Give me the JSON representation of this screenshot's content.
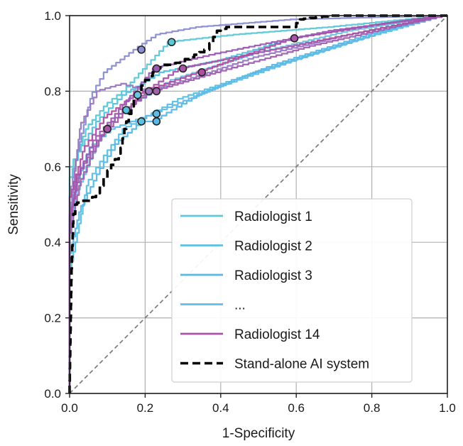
{
  "chart_data": {
    "type": "line",
    "xlabel": "1-Specificity",
    "ylabel": "Sensitivity",
    "xlim": [
      0,
      1
    ],
    "ylim": [
      0,
      1
    ],
    "xticks": [
      "0.0",
      "0.2",
      "0.4",
      "0.6",
      "0.8",
      "1.0"
    ],
    "yticks": [
      "0.0",
      "0.2",
      "0.4",
      "0.6",
      "0.8",
      "1.0"
    ],
    "grid": true,
    "legend_position": "lower-right",
    "legend": [
      {
        "label": "Radiologist 1",
        "color": "#5bc8d6",
        "style": "solid"
      },
      {
        "label": "Radiologist 2",
        "color": "#5cc0e0",
        "style": "solid"
      },
      {
        "label": "Radiologist 3",
        "color": "#58b8e6",
        "style": "solid"
      },
      {
        "label": "...",
        "color": "#62bce8",
        "style": "solid"
      },
      {
        "label": "Radiologist 14",
        "color": "#a855a8",
        "style": "solid"
      },
      {
        "label": "Stand-alone AI system",
        "color": "#000000",
        "style": "dashed"
      }
    ],
    "chance_line": {
      "x": [
        0,
        1
      ],
      "y": [
        0,
        1
      ],
      "color": "#808080",
      "style": "dashed"
    },
    "series": [
      {
        "color": "#5bc8d6",
        "points": [
          [
            0,
            0
          ],
          [
            0,
            0.58
          ],
          [
            0.02,
            0.62
          ],
          [
            0.05,
            0.7
          ],
          [
            0.1,
            0.76
          ],
          [
            0.15,
            0.8
          ],
          [
            0.27,
            0.93
          ],
          [
            0.45,
            0.95
          ],
          [
            0.7,
            0.97
          ],
          [
            1,
            1
          ]
        ]
      },
      {
        "color": "#5cc0e0",
        "points": [
          [
            0,
            0
          ],
          [
            0,
            0.3
          ],
          [
            0.02,
            0.4
          ],
          [
            0.05,
            0.55
          ],
          [
            0.1,
            0.63
          ],
          [
            0.15,
            0.7
          ],
          [
            0.19,
            0.72
          ],
          [
            0.3,
            0.78
          ],
          [
            0.5,
            0.85
          ],
          [
            0.75,
            0.93
          ],
          [
            1,
            1
          ]
        ]
      },
      {
        "color": "#58b8e6",
        "points": [
          [
            0,
            0
          ],
          [
            0,
            0.35
          ],
          [
            0.03,
            0.48
          ],
          [
            0.08,
            0.58
          ],
          [
            0.13,
            0.66
          ],
          [
            0.2,
            0.72
          ],
          [
            0.23,
            0.72
          ],
          [
            0.35,
            0.79
          ],
          [
            0.55,
            0.87
          ],
          [
            0.8,
            0.95
          ],
          [
            1,
            1
          ]
        ]
      },
      {
        "color": "#62bce8",
        "points": [
          [
            0,
            0
          ],
          [
            0,
            0.45
          ],
          [
            0.02,
            0.55
          ],
          [
            0.06,
            0.65
          ],
          [
            0.12,
            0.7
          ],
          [
            0.23,
            0.74
          ],
          [
            0.4,
            0.81
          ],
          [
            0.6,
            0.88
          ],
          [
            0.85,
            0.96
          ],
          [
            1,
            1
          ]
        ]
      },
      {
        "color": "#6cc4e2",
        "points": [
          [
            0,
            0
          ],
          [
            0,
            0.4
          ],
          [
            0.02,
            0.52
          ],
          [
            0.06,
            0.62
          ],
          [
            0.1,
            0.7
          ],
          [
            0.15,
            0.75
          ],
          [
            0.28,
            0.83
          ],
          [
            0.5,
            0.9
          ],
          [
            0.75,
            0.96
          ],
          [
            1,
            1
          ]
        ]
      },
      {
        "color": "#56c2dc",
        "points": [
          [
            0,
            0
          ],
          [
            0,
            0.55
          ],
          [
            0.03,
            0.64
          ],
          [
            0.08,
            0.72
          ],
          [
            0.15,
            0.79
          ],
          [
            0.25,
            0.85
          ],
          [
            0.4,
            0.88
          ],
          [
            0.6,
            0.94
          ],
          [
            0.85,
            0.98
          ],
          [
            1,
            1
          ]
        ]
      },
      {
        "color": "#8a8fd0",
        "points": [
          [
            0,
            0
          ],
          [
            0,
            0.5
          ],
          [
            0.02,
            0.62
          ],
          [
            0.06,
            0.78
          ],
          [
            0.1,
            0.85
          ],
          [
            0.18,
            0.91
          ],
          [
            0.24,
            0.95
          ],
          [
            0.35,
            0.97
          ],
          [
            0.6,
            0.99
          ],
          [
            1,
            1
          ]
        ]
      },
      {
        "color": "#9a78c2",
        "points": [
          [
            0,
            0
          ],
          [
            0,
            0.45
          ],
          [
            0.03,
            0.7
          ],
          [
            0.08,
            0.8
          ],
          [
            0.15,
            0.82
          ],
          [
            0.22,
            0.8
          ],
          [
            0.35,
            0.84
          ],
          [
            0.5,
            0.89
          ],
          [
            0.75,
            0.95
          ],
          [
            1,
            1
          ]
        ]
      },
      {
        "color": "#a060b0",
        "points": [
          [
            0,
            0
          ],
          [
            0,
            0.4
          ],
          [
            0.03,
            0.55
          ],
          [
            0.07,
            0.64
          ],
          [
            0.1,
            0.7
          ],
          [
            0.15,
            0.75
          ],
          [
            0.23,
            0.8
          ],
          [
            0.4,
            0.85
          ],
          [
            0.65,
            0.92
          ],
          [
            1,
            1
          ]
        ]
      },
      {
        "color": "#a855a8",
        "points": [
          [
            0,
            0
          ],
          [
            0,
            0.45
          ],
          [
            0.03,
            0.58
          ],
          [
            0.08,
            0.67
          ],
          [
            0.14,
            0.73
          ],
          [
            0.21,
            0.8
          ],
          [
            0.3,
            0.86
          ],
          [
            0.5,
            0.9
          ],
          [
            0.75,
            0.95
          ],
          [
            1,
            1
          ]
        ]
      },
      {
        "color": "#b04ea2",
        "points": [
          [
            0,
            0
          ],
          [
            0,
            0.5
          ],
          [
            0.04,
            0.64
          ],
          [
            0.1,
            0.73
          ],
          [
            0.18,
            0.79
          ],
          [
            0.35,
            0.85
          ],
          [
            0.6,
            0.94
          ],
          [
            0.85,
            0.98
          ],
          [
            1,
            1
          ]
        ]
      },
      {
        "color": "#9c5ab4",
        "points": [
          [
            0,
            0
          ],
          [
            0,
            0.42
          ],
          [
            0.02,
            0.56
          ],
          [
            0.07,
            0.67
          ],
          [
            0.13,
            0.74
          ],
          [
            0.23,
            0.86
          ],
          [
            0.4,
            0.9
          ],
          [
            0.7,
            0.96
          ],
          [
            1,
            1
          ]
        ]
      }
    ],
    "ai_system": {
      "color": "#000000",
      "points": [
        [
          0,
          0
        ],
        [
          0.005,
          0.3
        ],
        [
          0.01,
          0.45
        ],
        [
          0.02,
          0.5
        ],
        [
          0.04,
          0.51
        ],
        [
          0.06,
          0.51
        ],
        [
          0.08,
          0.53
        ],
        [
          0.09,
          0.55
        ],
        [
          0.11,
          0.59
        ],
        [
          0.13,
          0.62
        ],
        [
          0.14,
          0.65
        ],
        [
          0.15,
          0.7
        ],
        [
          0.17,
          0.76
        ],
        [
          0.19,
          0.8
        ],
        [
          0.21,
          0.83
        ],
        [
          0.23,
          0.85
        ],
        [
          0.25,
          0.87
        ],
        [
          0.28,
          0.87
        ],
        [
          0.33,
          0.89
        ],
        [
          0.37,
          0.91
        ],
        [
          0.4,
          0.96
        ],
        [
          0.43,
          0.97
        ],
        [
          0.6,
          0.97
        ],
        [
          0.62,
          0.99
        ],
        [
          0.7,
          1.0
        ],
        [
          1,
          1
        ]
      ]
    },
    "operating_points": [
      {
        "x": 0.19,
        "y": 0.91,
        "color": "#8a8fd0"
      },
      {
        "x": 0.27,
        "y": 0.93,
        "color": "#5bc8d6"
      },
      {
        "x": 0.23,
        "y": 0.86,
        "color": "#9c5ab4"
      },
      {
        "x": 0.3,
        "y": 0.86,
        "color": "#a855a8"
      },
      {
        "x": 0.35,
        "y": 0.85,
        "color": "#b04ea2"
      },
      {
        "x": 0.21,
        "y": 0.8,
        "color": "#9a78c2"
      },
      {
        "x": 0.23,
        "y": 0.8,
        "color": "#a060b0"
      },
      {
        "x": 0.18,
        "y": 0.79,
        "color": "#6cc4e2"
      },
      {
        "x": 0.15,
        "y": 0.75,
        "color": "#56c2dc"
      },
      {
        "x": 0.23,
        "y": 0.74,
        "color": "#62bce8"
      },
      {
        "x": 0.19,
        "y": 0.72,
        "color": "#5cc0e0"
      },
      {
        "x": 0.23,
        "y": 0.72,
        "color": "#58b8e6"
      },
      {
        "x": 0.1,
        "y": 0.7,
        "color": "#a855a8"
      },
      {
        "x": 0.595,
        "y": 0.94,
        "color": "#a855a8"
      }
    ]
  }
}
